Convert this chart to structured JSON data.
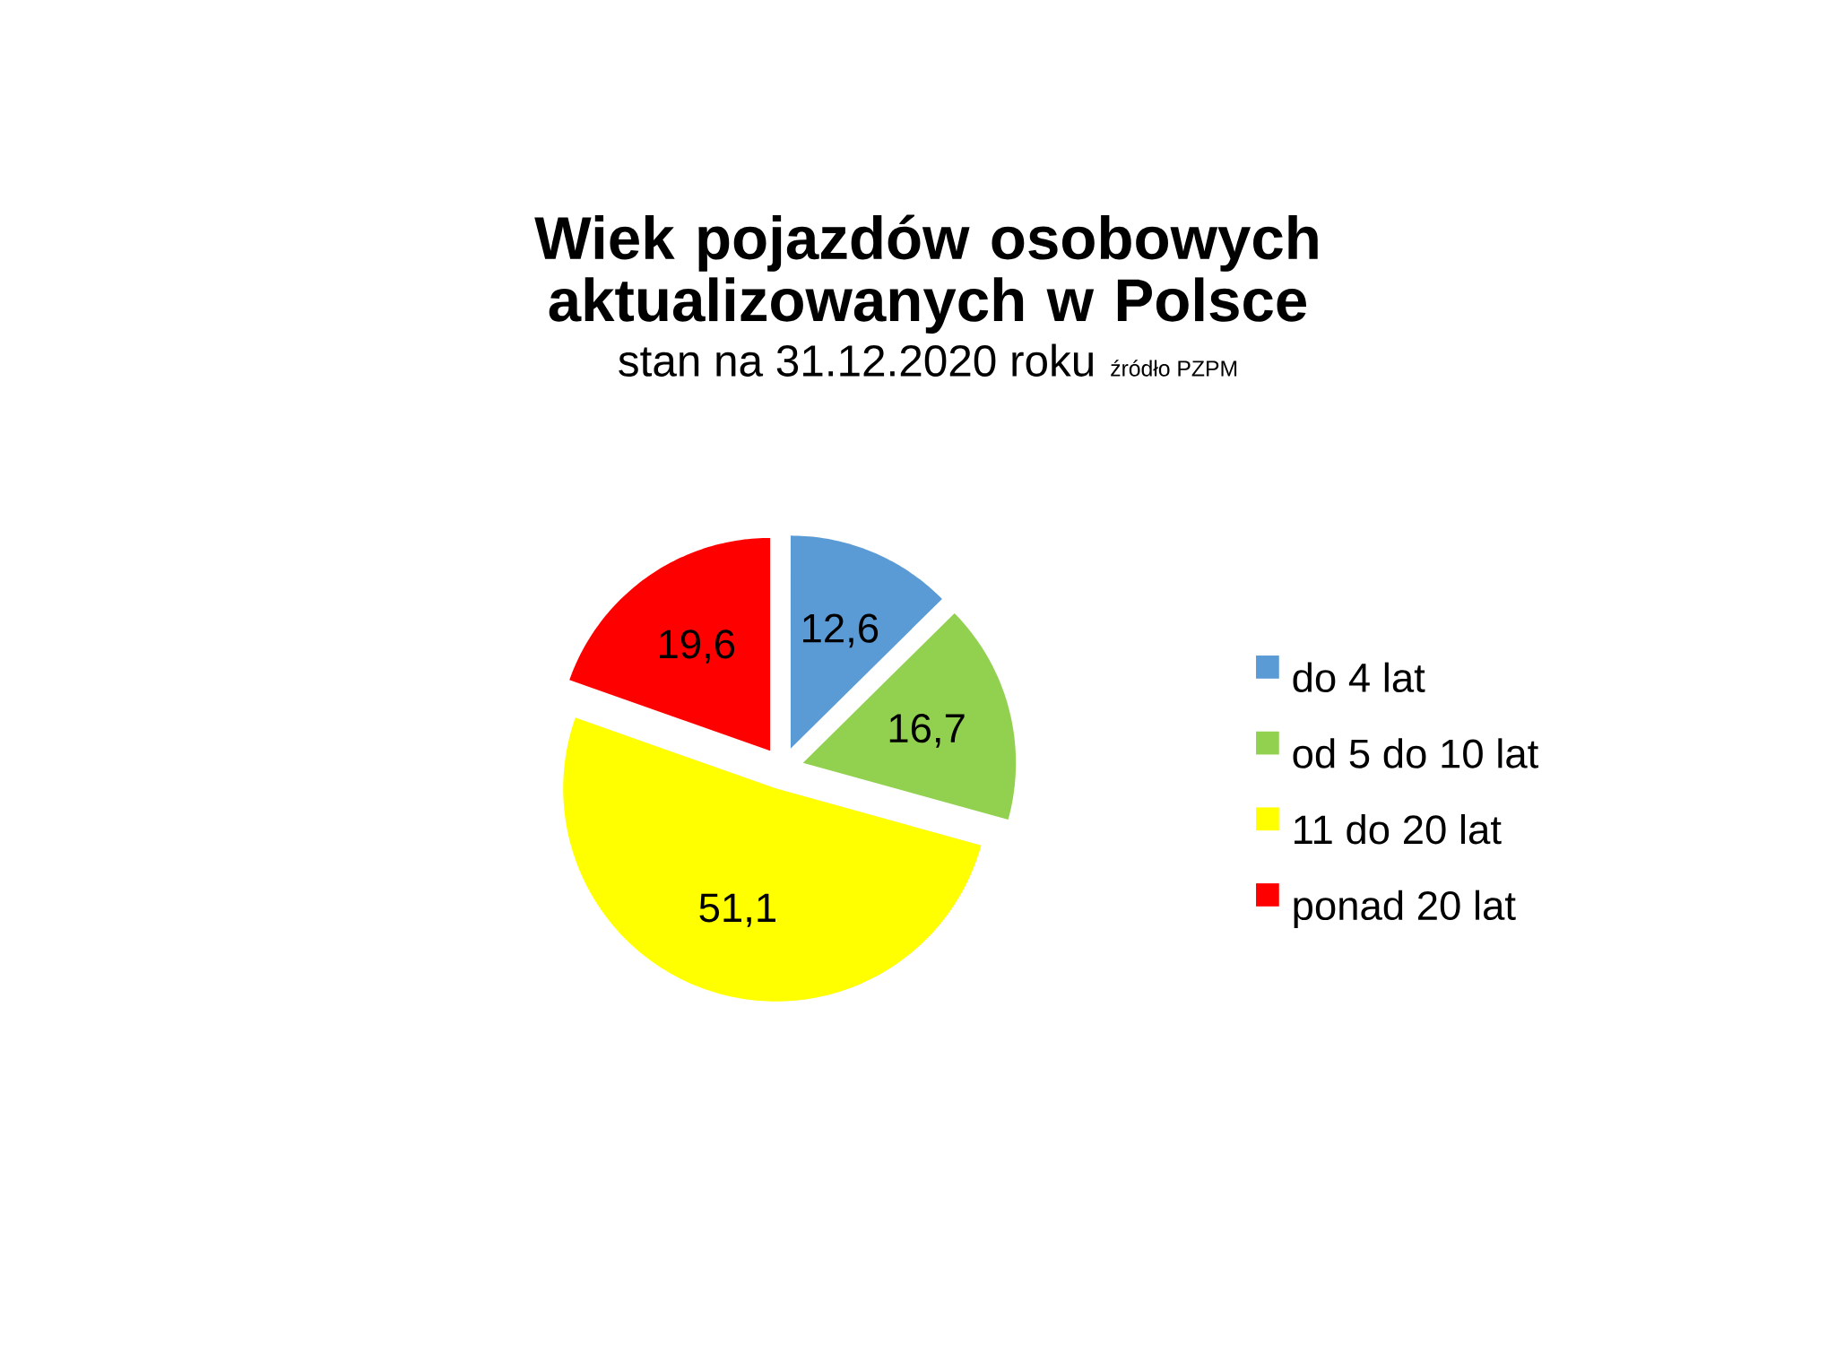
{
  "chart_data": {
    "type": "pie",
    "title": "Wiek pojazdów osobowych aktualizowanych w Polsce",
    "subtitle": "stan na 31.12.2020 roku",
    "annotations": [
      "źródło PZPM"
    ],
    "categories": [
      "do 4 lat",
      "od 5 do 10 lat",
      "11 do 20 lat",
      "ponad 20 lat"
    ],
    "values": [
      12.6,
      16.7,
      51.1,
      19.6
    ],
    "colors": [
      "#5b9bd5",
      "#92d050",
      "#ffff00",
      "#ff0000"
    ],
    "value_labels": [
      "12,6",
      "16,7",
      "51,1",
      "19,6"
    ],
    "legend": "right"
  }
}
